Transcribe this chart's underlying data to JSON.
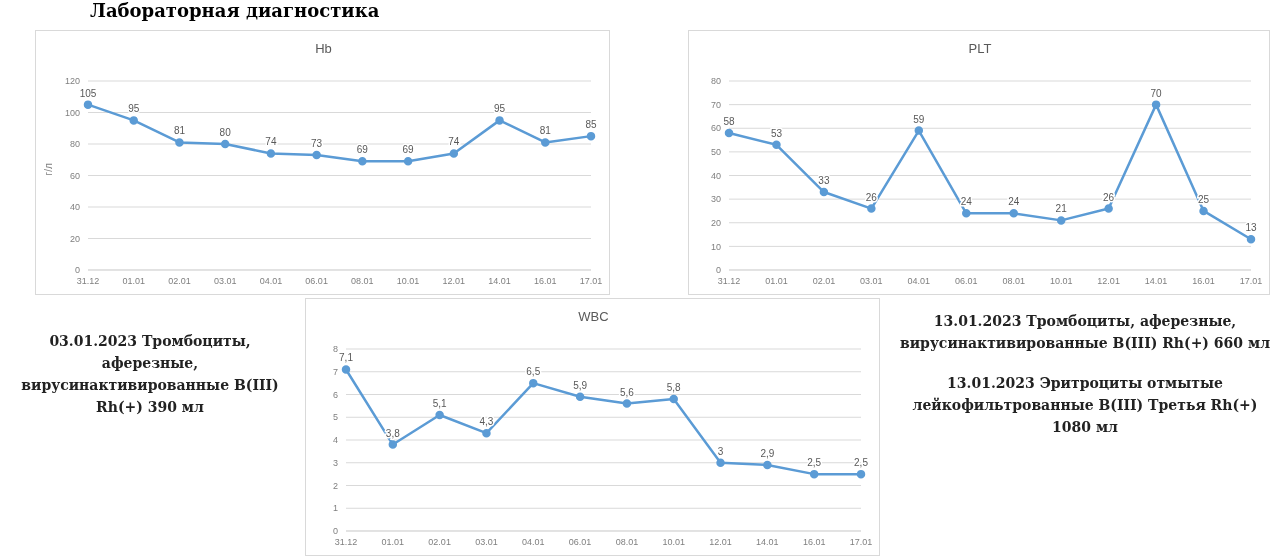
{
  "chart_data": [
    {
      "type": "other",
      "title": "Лабораторная диагностика"
    },
    {
      "type": "line",
      "title": "Hb",
      "ylabel": "г/л",
      "categories": [
        "31.12",
        "01.01",
        "02.01",
        "03.01",
        "04.01",
        "06.01",
        "08.01",
        "10.01",
        "12.01",
        "14.01",
        "16.01",
        "17.01"
      ],
      "series": [
        {
          "color": "#5b9bd5",
          "values": [
            105,
            95,
            81,
            80,
            74,
            73,
            69,
            69,
            74,
            95,
            81,
            85
          ]
        }
      ],
      "ylim": [
        0,
        120
      ],
      "yticks": [
        0,
        20,
        40,
        60,
        80,
        100,
        120
      ],
      "grid": "y",
      "legend": false,
      "marker": "circle",
      "line_style": "solid",
      "data_labels": true
    },
    {
      "type": "line",
      "title": "PLT",
      "categories": [
        "31.12",
        "01.01",
        "02.01",
        "03.01",
        "04.01",
        "06.01",
        "08.01",
        "10.01",
        "12.01",
        "14.01",
        "16.01",
        "17.01"
      ],
      "series": [
        {
          "color": "#5b9bd5",
          "values": [
            58,
            53,
            33,
            26,
            59,
            24,
            24,
            21,
            26,
            70,
            25,
            13
          ]
        }
      ],
      "ylim": [
        0,
        80
      ],
      "yticks": [
        0,
        10,
        20,
        30,
        40,
        50,
        60,
        70,
        80
      ],
      "grid": "y",
      "legend": false,
      "marker": "circle",
      "line_style": "solid",
      "data_labels": true
    },
    {
      "type": "other",
      "annotations": [
        "03.01.2023 Тромбоциты, аферезные, вирусинактивированные B(III) Rh(+) 390 мл"
      ]
    },
    {
      "type": "line",
      "title": "WBC",
      "categories": [
        "31.12",
        "01.01",
        "02.01",
        "03.01",
        "04.01",
        "06.01",
        "08.01",
        "10.01",
        "12.01",
        "14.01",
        "16.01",
        "17.01"
      ],
      "series": [
        {
          "color": "#5b9bd5",
          "values": [
            7.1,
            3.8,
            5.1,
            4.3,
            6.5,
            5.9,
            5.6,
            5.8,
            3,
            2.9,
            2.5,
            2.5
          ],
          "value_labels": [
            "7,1",
            "3,8",
            "5,1",
            "4,3",
            "6,5",
            "5,9",
            "5,6",
            "5,8",
            "3",
            "2,9",
            "2,5",
            "2,5"
          ]
        }
      ],
      "ylim": [
        0,
        8
      ],
      "yticks": [
        0,
        1,
        2,
        3,
        4,
        5,
        6,
        7,
        8
      ],
      "grid": "y",
      "legend": false,
      "marker": "circle",
      "line_style": "solid"
    },
    {
      "type": "other",
      "annotations": [
        "13.01.2023 Тромбоциты, аферезные, вирусинактивированные B(III) Rh(+) 660 мл",
        "13.01.2023 Эритроциты отмытые лейкофильтрованные B(III) Третья Rh(+) 1080 мл"
      ]
    }
  ]
}
